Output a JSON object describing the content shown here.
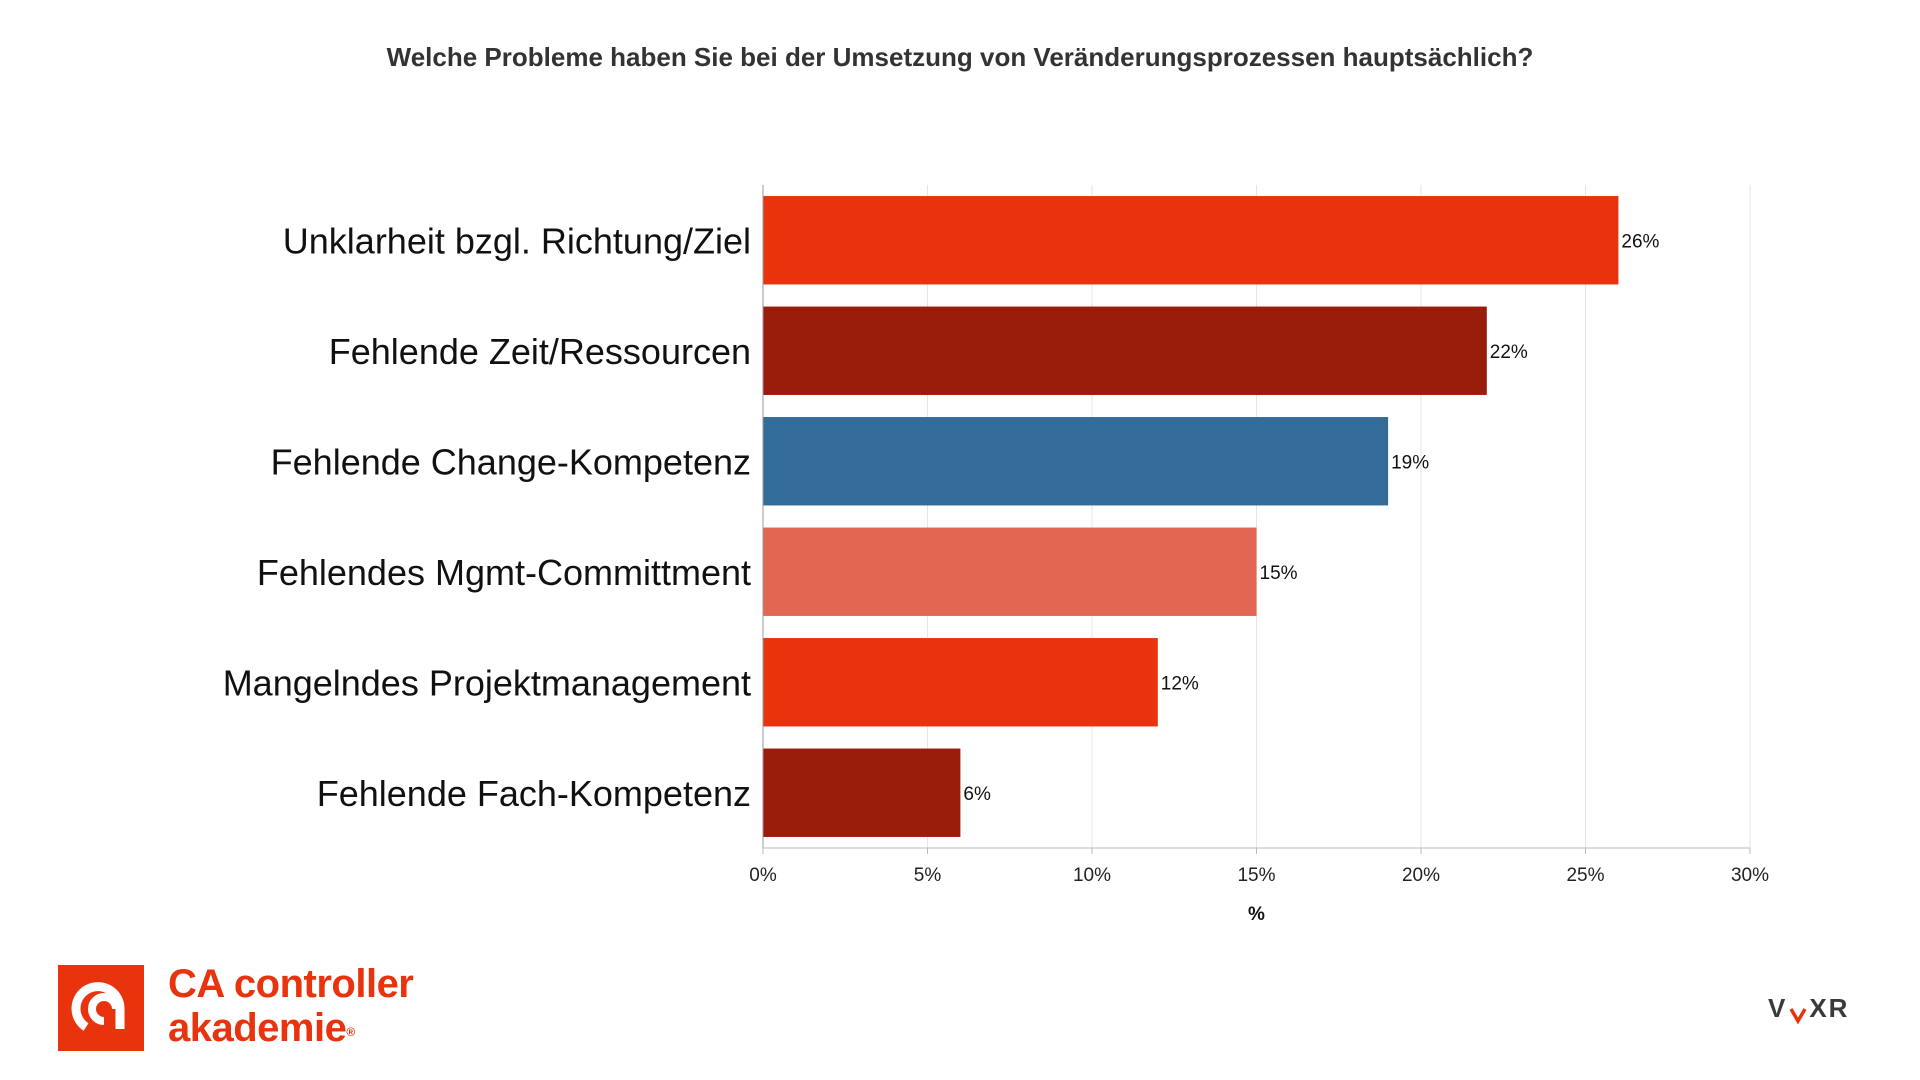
{
  "chart_data": {
    "type": "bar",
    "orientation": "horizontal",
    "title": "Welche Probleme haben Sie bei der Umsetzung von Veränderungsprozessen hauptsächlich?",
    "xlabel": "%",
    "ylabel": "",
    "xlim": [
      0,
      30
    ],
    "xticks": [
      "0%",
      "5%",
      "10%",
      "15%",
      "20%",
      "25%",
      "30%"
    ],
    "categories": [
      "Unklarheit bzgl. Richtung/Ziel",
      "Fehlende Zeit/Ressourcen",
      "Fehlende Change-Kompetenz",
      "Fehlendes Mgmt-Committment",
      "Mangelndes Projektmanagement",
      "Fehlende Fach-Kompetenz"
    ],
    "values": [
      26,
      22,
      19,
      15,
      12,
      6
    ],
    "value_labels": [
      "26%",
      "22%",
      "19%",
      "15%",
      "12%",
      "6%"
    ],
    "colors": [
      "#e8330d",
      "#9a1c0a",
      "#336b99",
      "#e26652",
      "#e8330d",
      "#9a1c0a"
    ],
    "grid": true,
    "legend": "none"
  },
  "logo": {
    "line1": "CA controller",
    "line2": "akademie",
    "registered": "®",
    "color": "#e8330d"
  },
  "brand": {
    "voxr_left": "V",
    "voxr_right": "XR"
  }
}
